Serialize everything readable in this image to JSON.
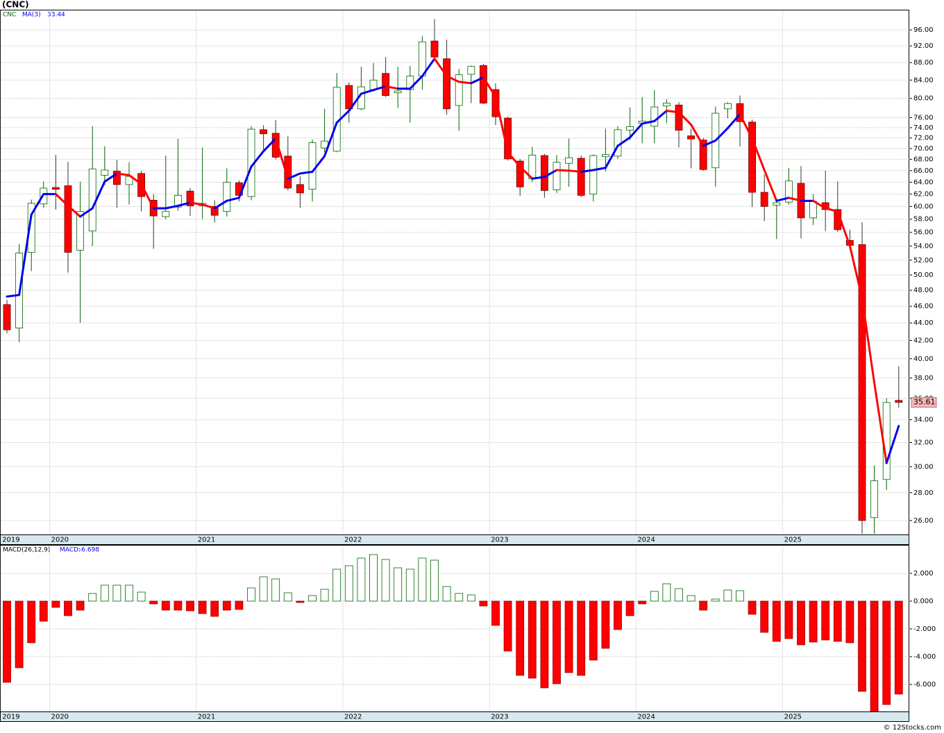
{
  "chart_data": [
    {
      "type": "candlestick",
      "title": "(CNC)",
      "symbol": "CNC",
      "ma_label": "MA(3)",
      "categories": [
        "2019",
        null,
        null,
        null,
        "2020",
        null,
        null,
        null,
        null,
        null,
        null,
        null,
        null,
        null,
        null,
        null,
        "2021",
        null,
        null,
        null,
        null,
        null,
        null,
        null,
        null,
        null,
        null,
        null,
        "2022",
        null,
        null,
        null,
        null,
        null,
        null,
        null,
        null,
        null,
        null,
        null,
        "2023",
        null,
        null,
        null,
        null,
        null,
        null,
        null,
        null,
        null,
        null,
        null,
        "2024",
        null,
        null,
        null,
        null,
        null,
        null,
        null,
        null,
        null,
        null,
        null,
        "2025",
        null,
        null,
        null,
        null,
        null,
        null,
        null,
        null,
        null
      ],
      "open": [
        46.2,
        43.4,
        53.1,
        60.4,
        63.1,
        63.4,
        53.4,
        56.2,
        65.2,
        65.9,
        63.6,
        65.5,
        61.0,
        58.4,
        59.9,
        62.5,
        60.1,
        60.0,
        59.2,
        63.9,
        61.6,
        73.6,
        72.9,
        68.6,
        63.6,
        62.8,
        70.1,
        69.5,
        82.8,
        77.8,
        81.9,
        85.5,
        81.2,
        81.9,
        84.9,
        93.2,
        88.9,
        78.5,
        85.3,
        87.3,
        81.9,
        75.9,
        67.7,
        64.6,
        68.7,
        62.7,
        67.3,
        68.2,
        62.0,
        68.5,
        68.6,
        73.5,
        74.9,
        74.3,
        78.4,
        78.6,
        72.4,
        71.6,
        66.5,
        77.8,
        78.9,
        75.1,
        62.3,
        60.2,
        60.7,
        63.8,
        58.2,
        60.6,
        59.5,
        54.8,
        54.2,
        26.2,
        29.0,
        35.8
      ],
      "high": [
        46.8,
        54.3,
        61.1,
        64.1,
        68.8,
        67.6,
        64.1,
        74.3,
        70.4,
        67.9,
        67.5,
        66.0,
        62.0,
        68.7,
        71.8,
        63.0,
        70.2,
        61.0,
        66.4,
        64.3,
        74.3,
        74.5,
        75.5,
        72.3,
        65.0,
        71.7,
        77.8,
        85.6,
        83.5,
        87.0,
        87.9,
        89.3,
        87.0,
        87.2,
        94.5,
        98.8,
        93.5,
        86.5,
        87.3,
        87.7,
        83.3,
        76.2,
        68.1,
        70.3,
        69.0,
        68.8,
        71.9,
        68.7,
        68.9,
        73.8,
        74.3,
        78.1,
        80.3,
        81.8,
        79.8,
        79.2,
        73.8,
        72.0,
        78.3,
        79.2,
        80.6,
        75.6,
        65.3,
        61.2,
        66.5,
        66.8,
        62.0,
        66.0,
        64.1,
        56.4,
        57.5,
        30.1,
        36.0,
        39.2
      ],
      "low": [
        42.8,
        41.8,
        50.5,
        59.8,
        59.5,
        50.3,
        44.0,
        54.0,
        63.5,
        59.8,
        60.3,
        59.2,
        53.6,
        58.0,
        59.3,
        58.5,
        58.0,
        57.5,
        58.4,
        60.8,
        61.0,
        69.8,
        68.0,
        62.6,
        59.8,
        60.8,
        69.3,
        69.3,
        75.0,
        77.5,
        81.5,
        80.3,
        78.0,
        75.0,
        81.9,
        88.9,
        76.6,
        73.4,
        79.0,
        78.8,
        74.5,
        67.8,
        61.7,
        64.0,
        61.4,
        62.2,
        63.2,
        61.5,
        60.8,
        65.9,
        68.1,
        71.6,
        71.0,
        71.0,
        74.9,
        70.2,
        66.4,
        66.0,
        63.2,
        75.9,
        70.4,
        59.9,
        57.7,
        55.0,
        60.3,
        55.1,
        57.1,
        56.2,
        56.1,
        53.5,
        25.1,
        25.1,
        28.2,
        35.1
      ],
      "close": [
        43.2,
        53.0,
        60.5,
        63.0,
        62.8,
        53.1,
        59.2,
        66.3,
        66.1,
        63.6,
        65.0,
        61.6,
        58.5,
        59.2,
        61.8,
        60.1,
        60.5,
        58.6,
        64.0,
        61.8,
        73.7,
        72.8,
        68.4,
        63.0,
        62.2,
        71.1,
        71.4,
        82.4,
        77.8,
        82.5,
        84.0,
        80.6,
        81.6,
        84.9,
        93.0,
        89.3,
        77.8,
        85.2,
        87.1,
        79.0,
        76.2,
        68.1,
        63.2,
        68.8,
        62.6,
        67.5,
        68.3,
        61.8,
        68.7,
        68.9,
        73.6,
        74.2,
        75.3,
        78.2,
        79.0,
        73.5,
        71.8,
        66.2,
        76.9,
        78.9,
        75.2,
        62.3,
        60.0,
        60.6,
        64.2,
        58.2,
        60.8,
        59.5,
        56.4,
        54.1,
        26.0,
        28.9,
        35.6,
        35.61
      ],
      "ma": [
        47.2,
        47.4,
        58.7,
        62.0,
        62.0,
        60.1,
        58.4,
        59.7,
        64.1,
        65.5,
        65.2,
        63.7,
        59.7,
        59.7,
        60.1,
        60.6,
        60.3,
        59.7,
        60.9,
        61.4,
        66.7,
        69.5,
        71.9,
        64.6,
        65.5,
        65.8,
        68.6,
        75.0,
        77.4,
        81.0,
        81.8,
        82.6,
        82.1,
        82.1,
        84.9,
        88.9,
        84.9,
        83.6,
        83.3,
        84.6,
        80.3,
        69.3,
        66.7,
        64.6,
        64.9,
        66.1,
        66.0,
        65.8,
        66.1,
        66.5,
        70.5,
        72.1,
        74.8,
        75.3,
        77.4,
        77.1,
        74.6,
        70.5,
        71.5,
        73.9,
        76.7,
        71.9,
        66.1,
        60.9,
        61.4,
        60.9,
        60.9,
        59.7,
        59.2,
        54.0,
        47.0,
        37.5,
        30.3,
        33.44
      ],
      "ylim": [
        25.05,
        101.3
      ],
      "log_scale": true,
      "grid": true,
      "yticks": [
        {
          "value": 26,
          "label": "26.00"
        },
        {
          "value": 28,
          "label": "28.00"
        },
        {
          "value": 30,
          "label": "30.00"
        },
        {
          "value": 32,
          "label": "32.00"
        },
        {
          "value": 34,
          "label": "34.00"
        },
        {
          "value": 36,
          "label": "36.00"
        },
        {
          "value": 38,
          "label": "38.00"
        },
        {
          "value": 40,
          "label": "40.00"
        },
        {
          "value": 42,
          "label": "42.00"
        },
        {
          "value": 44,
          "label": "44.00"
        },
        {
          "value": 46,
          "label": "46.00"
        },
        {
          "value": 48,
          "label": "48.00"
        },
        {
          "value": 50,
          "label": "50.00"
        },
        {
          "value": 52,
          "label": "52.00"
        },
        {
          "value": 54,
          "label": "54.00"
        },
        {
          "value": 56,
          "label": "56.00"
        },
        {
          "value": 58,
          "label": "58.00"
        },
        {
          "value": 60,
          "label": "60.00"
        },
        {
          "value": 62,
          "label": "62.00"
        },
        {
          "value": 64,
          "label": "64.00"
        },
        {
          "value": 66,
          "label": "66.00"
        },
        {
          "value": 68,
          "label": "68.00"
        },
        {
          "value": 70,
          "label": "70.00"
        },
        {
          "value": 72,
          "label": "72.00"
        },
        {
          "value": 74,
          "label": "74.00"
        },
        {
          "value": 76,
          "label": "76.00"
        },
        {
          "value": 80,
          "label": "80.00"
        },
        {
          "value": 84,
          "label": "84.00"
        },
        {
          "value": 88,
          "label": "88.00"
        },
        {
          "value": 92,
          "label": "92.00"
        },
        {
          "value": 96,
          "label": "96.00"
        }
      ],
      "up_color": "#006400",
      "down_color": "#ff0000",
      "ma_up_color": "#0000ee",
      "ma_down_color": "#ff0000",
      "last_label_color": "#f4b8b8"
    },
    {
      "type": "bar",
      "title": "MACD(26,12,9)",
      "value_prefix": "MACD:",
      "values": [
        -5.85,
        -4.8,
        -3.0,
        -1.45,
        -0.45,
        -1.05,
        -0.65,
        0.55,
        1.15,
        1.15,
        1.15,
        0.65,
        -0.2,
        -0.65,
        -0.65,
        -0.7,
        -0.9,
        -1.1,
        -0.65,
        -0.6,
        0.95,
        1.75,
        1.6,
        0.6,
        -0.1,
        0.4,
        0.85,
        2.3,
        2.55,
        3.1,
        3.35,
        3.0,
        2.4,
        2.3,
        3.1,
        2.95,
        1.05,
        0.55,
        0.45,
        -0.35,
        -1.75,
        -3.6,
        -5.35,
        -5.55,
        -6.25,
        -5.95,
        -5.15,
        -5.35,
        -4.25,
        -3.4,
        -2.05,
        -1.05,
        -0.2,
        0.7,
        1.25,
        0.9,
        0.4,
        -0.65,
        0.15,
        0.8,
        0.75,
        -0.95,
        -2.25,
        -2.9,
        -2.7,
        -3.15,
        -2.95,
        -2.8,
        -2.9,
        -3.0,
        -6.5,
        -7.95,
        -7.45,
        -6.698
      ],
      "ylim": [
        -7.95,
        4.05
      ],
      "grid": true,
      "yticks": [
        {
          "value": -6,
          "label": "-6.000"
        },
        {
          "value": -4,
          "label": "-4.000"
        },
        {
          "value": -2,
          "label": "-2.000"
        },
        {
          "value": 0,
          "label": "0.000"
        },
        {
          "value": 2,
          "label": "2.000"
        }
      ],
      "positive_color": "#006400",
      "negative_color": "#ff0000"
    }
  ],
  "footer": "© 12Stocks.com"
}
